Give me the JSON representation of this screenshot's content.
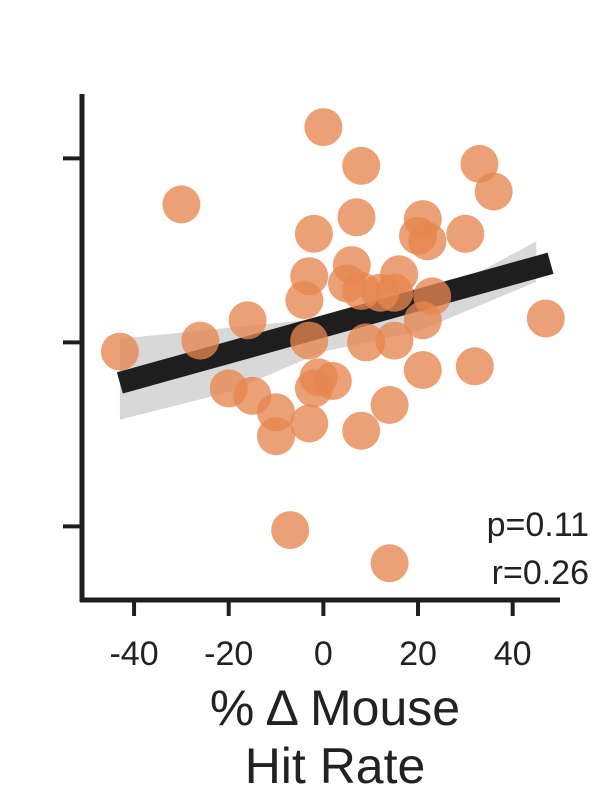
{
  "chart_data": {
    "type": "scatter",
    "xlabel_lines": [
      "% Δ Mouse",
      "Hit Rate"
    ],
    "ylabel": "",
    "x_ticks": [
      "-40",
      "-20",
      "0",
      "20",
      "40"
    ],
    "x_tick_values": [
      -40,
      -20,
      0,
      20,
      40
    ],
    "y_tick_values": [
      -1,
      0,
      1
    ],
    "xlim": [
      -51,
      50
    ],
    "ylim": [
      -1.4,
      1.35
    ],
    "grid": false,
    "stats": {
      "p": "p=0.11",
      "r": "r=0.26"
    },
    "point_color": "#e5874e",
    "fit_color": "#1e1e1e",
    "ci_color": "#c8c8c8",
    "fit_line": {
      "x": [
        -43,
        48
      ],
      "y": [
        -0.22,
        0.43
      ]
    },
    "ci_band": {
      "x": [
        -43,
        -20,
        0,
        20,
        45
      ],
      "upper": [
        0.02,
        0.08,
        0.13,
        0.2,
        0.55
      ],
      "lower": [
        -0.42,
        -0.27,
        -0.05,
        0.06,
        0.33
      ]
    },
    "points": [
      {
        "x": 0,
        "y": 1.17
      },
      {
        "x": 8,
        "y": 0.96
      },
      {
        "x": -30,
        "y": 0.75
      },
      {
        "x": 33,
        "y": 0.97
      },
      {
        "x": 36,
        "y": 0.82
      },
      {
        "x": 7,
        "y": 0.68
      },
      {
        "x": 21,
        "y": 0.67
      },
      {
        "x": -2,
        "y": 0.59
      },
      {
        "x": 20,
        "y": 0.58
      },
      {
        "x": 22,
        "y": 0.55
      },
      {
        "x": 30,
        "y": 0.59
      },
      {
        "x": -3,
        "y": 0.36
      },
      {
        "x": 6,
        "y": 0.42
      },
      {
        "x": 16,
        "y": 0.37
      },
      {
        "x": 5,
        "y": 0.32
      },
      {
        "x": 8,
        "y": 0.28
      },
      {
        "x": 12,
        "y": 0.27
      },
      {
        "x": 15,
        "y": 0.27
      },
      {
        "x": 23,
        "y": 0.25
      },
      {
        "x": -4,
        "y": 0.23
      },
      {
        "x": 21,
        "y": 0.12
      },
      {
        "x": 47,
        "y": 0.13
      },
      {
        "x": -16,
        "y": 0.12
      },
      {
        "x": -26,
        "y": 0.01
      },
      {
        "x": -43,
        "y": -0.05
      },
      {
        "x": -3,
        "y": 0.01
      },
      {
        "x": 9,
        "y": 0.0
      },
      {
        "x": 15,
        "y": 0.01
      },
      {
        "x": 21,
        "y": -0.15
      },
      {
        "x": 32,
        "y": -0.13
      },
      {
        "x": -20,
        "y": -0.25
      },
      {
        "x": -15,
        "y": -0.29
      },
      {
        "x": -1,
        "y": -0.19
      },
      {
        "x": 2,
        "y": -0.21
      },
      {
        "x": -2,
        "y": -0.25
      },
      {
        "x": -10,
        "y": -0.38
      },
      {
        "x": -3,
        "y": -0.44
      },
      {
        "x": 8,
        "y": -0.48
      },
      {
        "x": 14,
        "y": -0.34
      },
      {
        "x": -10,
        "y": -0.51
      },
      {
        "x": -7,
        "y": -1.02
      },
      {
        "x": 14,
        "y": -1.2
      }
    ]
  }
}
